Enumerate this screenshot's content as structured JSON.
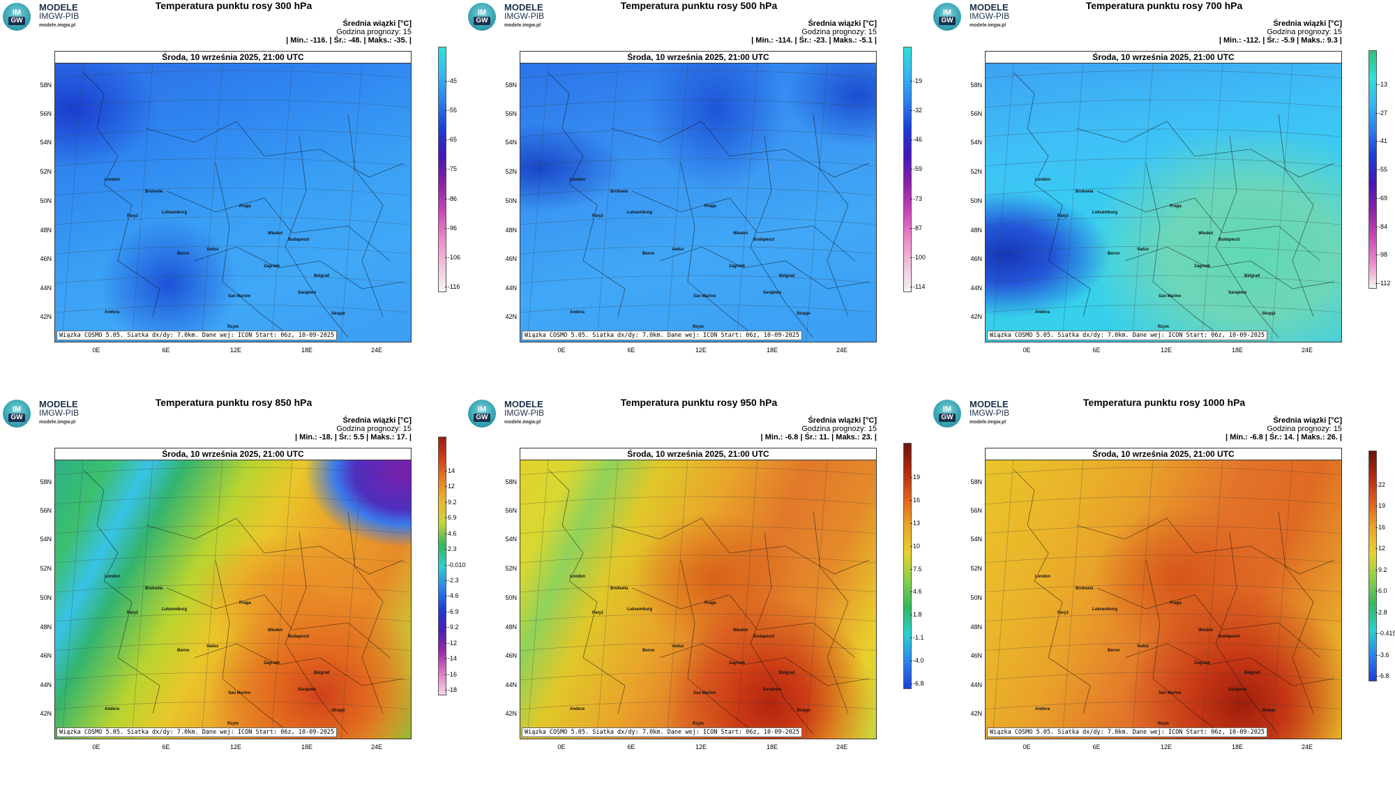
{
  "brand": {
    "line1": "MODELE",
    "line2": "IMGW-PIB",
    "line3": "modele.imgw.pl",
    "logo_top": "IM",
    "logo_bottom": "GW"
  },
  "common": {
    "date_header": "Środa, 10 września 2025, 21:00 UTC",
    "info_title": "Średnia wiązki [°C]",
    "forecast_hour": "Godzina prognozy: 15",
    "footer": "Wiązka COSMO 5.05. Siatka dx/dy: 7.0km. Dane wej: ICON Start: 06z, 10-09-2025",
    "lat_labels": [
      "58N",
      "56N",
      "54N",
      "52N",
      "50N",
      "48N",
      "46N",
      "44N",
      "42N"
    ],
    "lon_labels": [
      "0E",
      "6E",
      "12E",
      "18E",
      "24E"
    ],
    "cities": [
      "London",
      "Bruksela",
      "Paryż",
      "Luksemburg",
      "Praga",
      "Wiedeń",
      "Budapeszt",
      "Berno",
      "Vaduz",
      "Zagrzeb",
      "Belgrad",
      "San Marino",
      "Sarajewo",
      "Andora",
      "Rzym",
      "Skopje"
    ]
  },
  "panels": [
    {
      "title": "Temperatura punktu rosy 300 hPa",
      "stats": "| Min.:   -116. | Śr.:   -48. | Maks.:   -35. |",
      "scale": "cold",
      "cbar_ticks": [
        "-45",
        "-55",
        "-65",
        "-75",
        "-86",
        "-96",
        "-106",
        "-116"
      ]
    },
    {
      "title": "Temperatura punktu rosy 500 hPa",
      "stats": "| Min.:   -114. | Śr.:   -23. | Maks.:   -5.1 |",
      "scale": "cold2",
      "cbar_ticks": [
        "-19",
        "-32",
        "-46",
        "-59",
        "-73",
        "-87",
        "-100",
        "-114"
      ]
    },
    {
      "title": "Temperatura punktu rosy 700 hPa",
      "stats": "| Min.:   -112. | Śr.:   -5.9 | Maks.:   9.3 |",
      "scale": "mid",
      "cbar_ticks": [
        "-13",
        "-27",
        "-41",
        "-55",
        "-69",
        "-84",
        "-98",
        "-112"
      ]
    },
    {
      "title": "Temperatura punktu rosy 850 hPa",
      "stats": "| Min.:   -18. | Śr.:   5.5 | Maks.:   17. |",
      "scale": "warm850",
      "cbar_ticks": [
        "14",
        "12",
        "9.2",
        "6.9",
        "4.6",
        "2.3",
        "-0.010",
        "-2.3",
        "-4.6",
        "-6.9",
        "-9.2",
        "-12",
        "-14",
        "-16",
        "-18"
      ]
    },
    {
      "title": "Temperatura punktu rosy 950 hPa",
      "stats": "| Min.:   -6.8 | Śr.:   11. | Maks.:   23. |",
      "scale": "warm",
      "cbar_ticks": [
        "19",
        "16",
        "13",
        "10",
        "7.5",
        "4.6",
        "1.8",
        "-1.1",
        "-4.0",
        "-6.8"
      ]
    },
    {
      "title": "Temperatura punktu rosy 1000 hPa",
      "stats": "| Min.:   -6.8 | Śr.:   14. | Maks.:   26. |",
      "scale": "warm2",
      "cbar_ticks": [
        "22",
        "19",
        "16",
        "12",
        "9.2",
        "6.0",
        "2.8",
        "-0.415",
        "-3.6",
        "-6.8"
      ]
    }
  ]
}
